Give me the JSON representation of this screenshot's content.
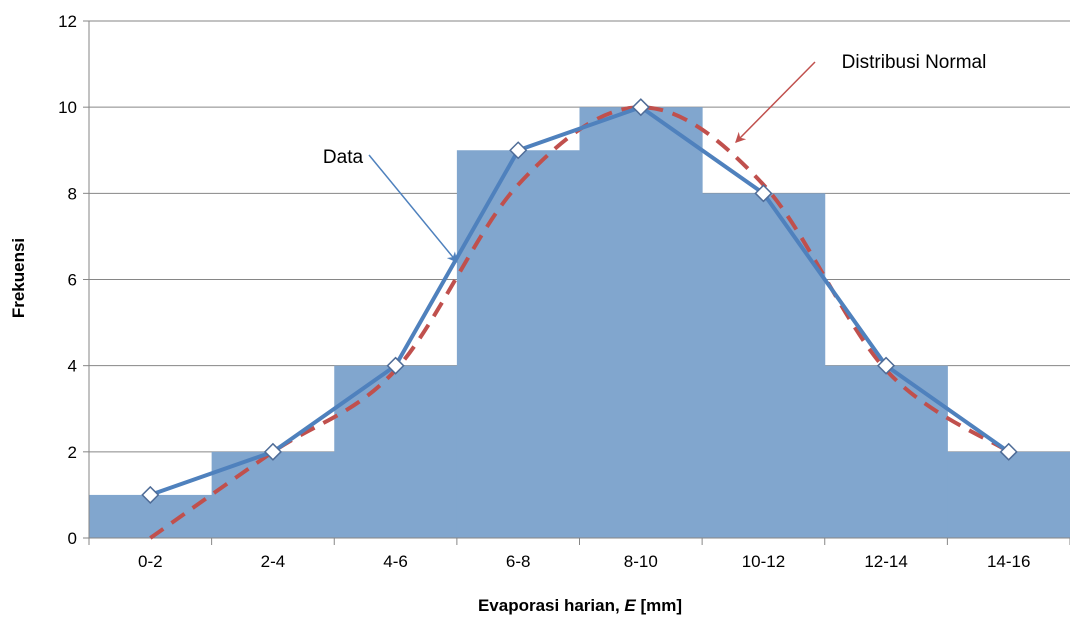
{
  "chart_data": {
    "type": "bar",
    "categories": [
      "0-2",
      "2-4",
      "4-6",
      "6-8",
      "8-10",
      "10-12",
      "12-14",
      "14-16"
    ],
    "series": [
      {
        "values": [
          1,
          2,
          4,
          9,
          10,
          8,
          4,
          2
        ],
        "kind": "histogram",
        "color": "#81A6CE"
      },
      {
        "name": "Data",
        "values": [
          1,
          2,
          4,
          9,
          10,
          8,
          4,
          2
        ],
        "kind": "line-markers",
        "color": "#4F81BD"
      },
      {
        "name": "Distribusi Normal",
        "values": [
          0,
          2,
          3.9,
          8.2,
          10,
          8.2,
          3.9,
          2
        ],
        "kind": "dashed-line",
        "color": "#C0504D"
      }
    ],
    "xlabel": "Evaporasi harian, ",
    "xlabel_italic": "E",
    "xlabel_suffix": " [mm]",
    "ylabel": "Frekuensi",
    "ylim": [
      0,
      12
    ],
    "yticks": [
      0,
      2,
      4,
      6,
      8,
      10,
      12
    ],
    "grid": true,
    "annotations": [
      {
        "text": "Data",
        "points_to": {
          "category": "4-6",
          "value": 6.5
        },
        "color": "#4F81BD"
      },
      {
        "text": "Distribusi Normal",
        "points_to": {
          "category": "8-10",
          "value": 9
        },
        "color": "#C0504D"
      }
    ]
  }
}
